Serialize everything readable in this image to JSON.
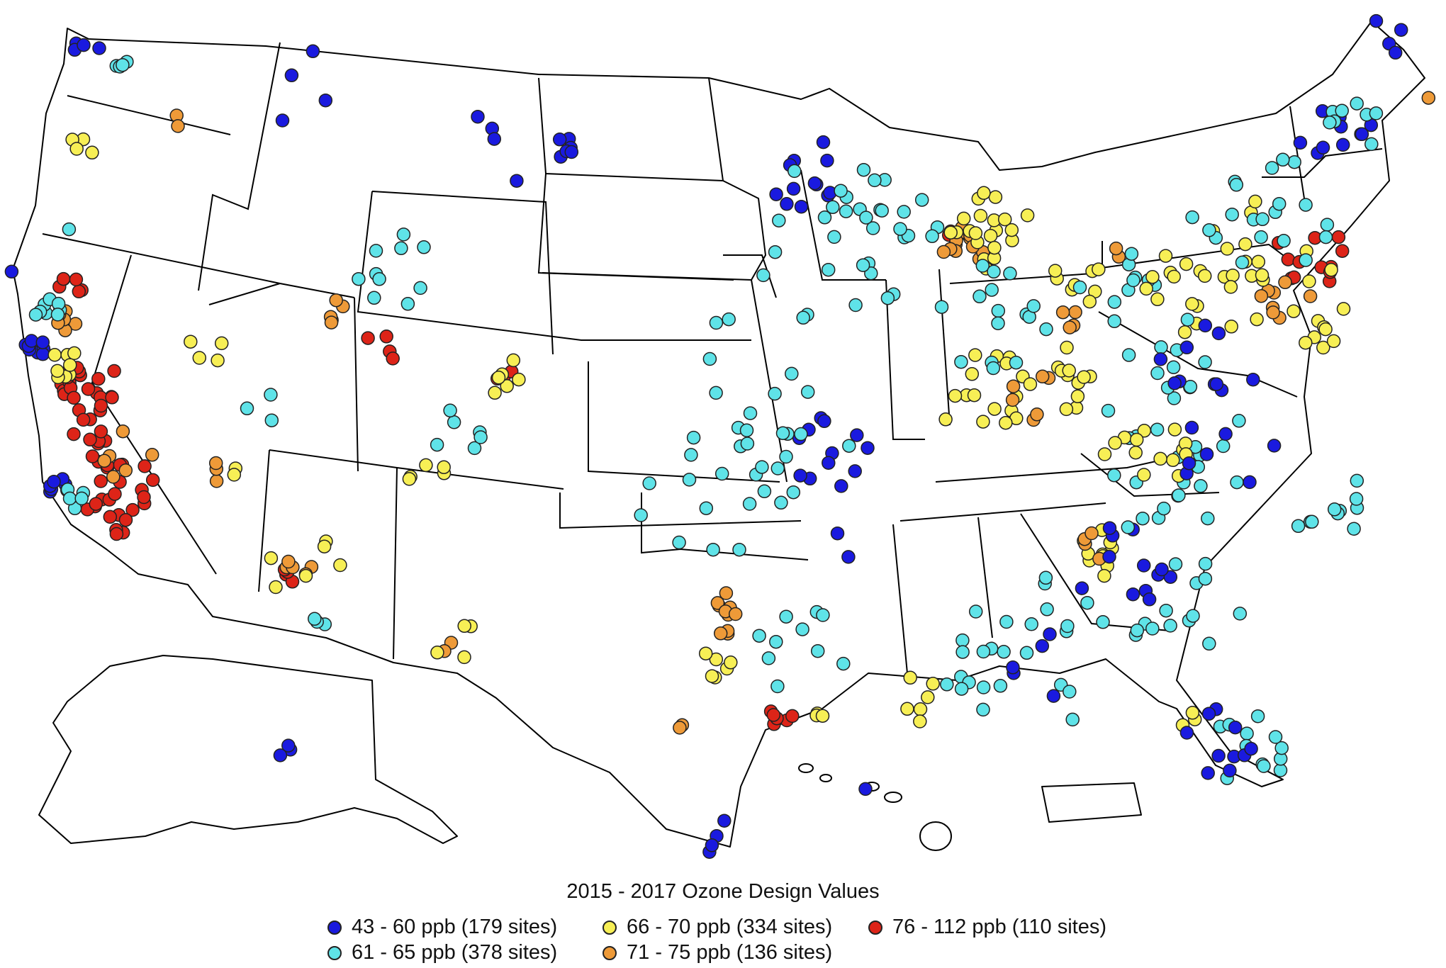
{
  "legend": {
    "title": "2015 - 2017 Ozone Design Values",
    "items": [
      {
        "label": "43 - 60 ppb (179 sites)",
        "color": "#1a1adf"
      },
      {
        "label": "61 - 65 ppb (378 sites)",
        "color": "#5fe3e8"
      },
      {
        "label": "66 - 70 ppb (334 sites)",
        "color": "#f7ef55"
      },
      {
        "label": "71 - 75 ppb (136 sites)",
        "color": "#ee9a38"
      },
      {
        "label": "76 - 112 ppb (110 sites)",
        "color": "#dd2418"
      }
    ]
  }
}
